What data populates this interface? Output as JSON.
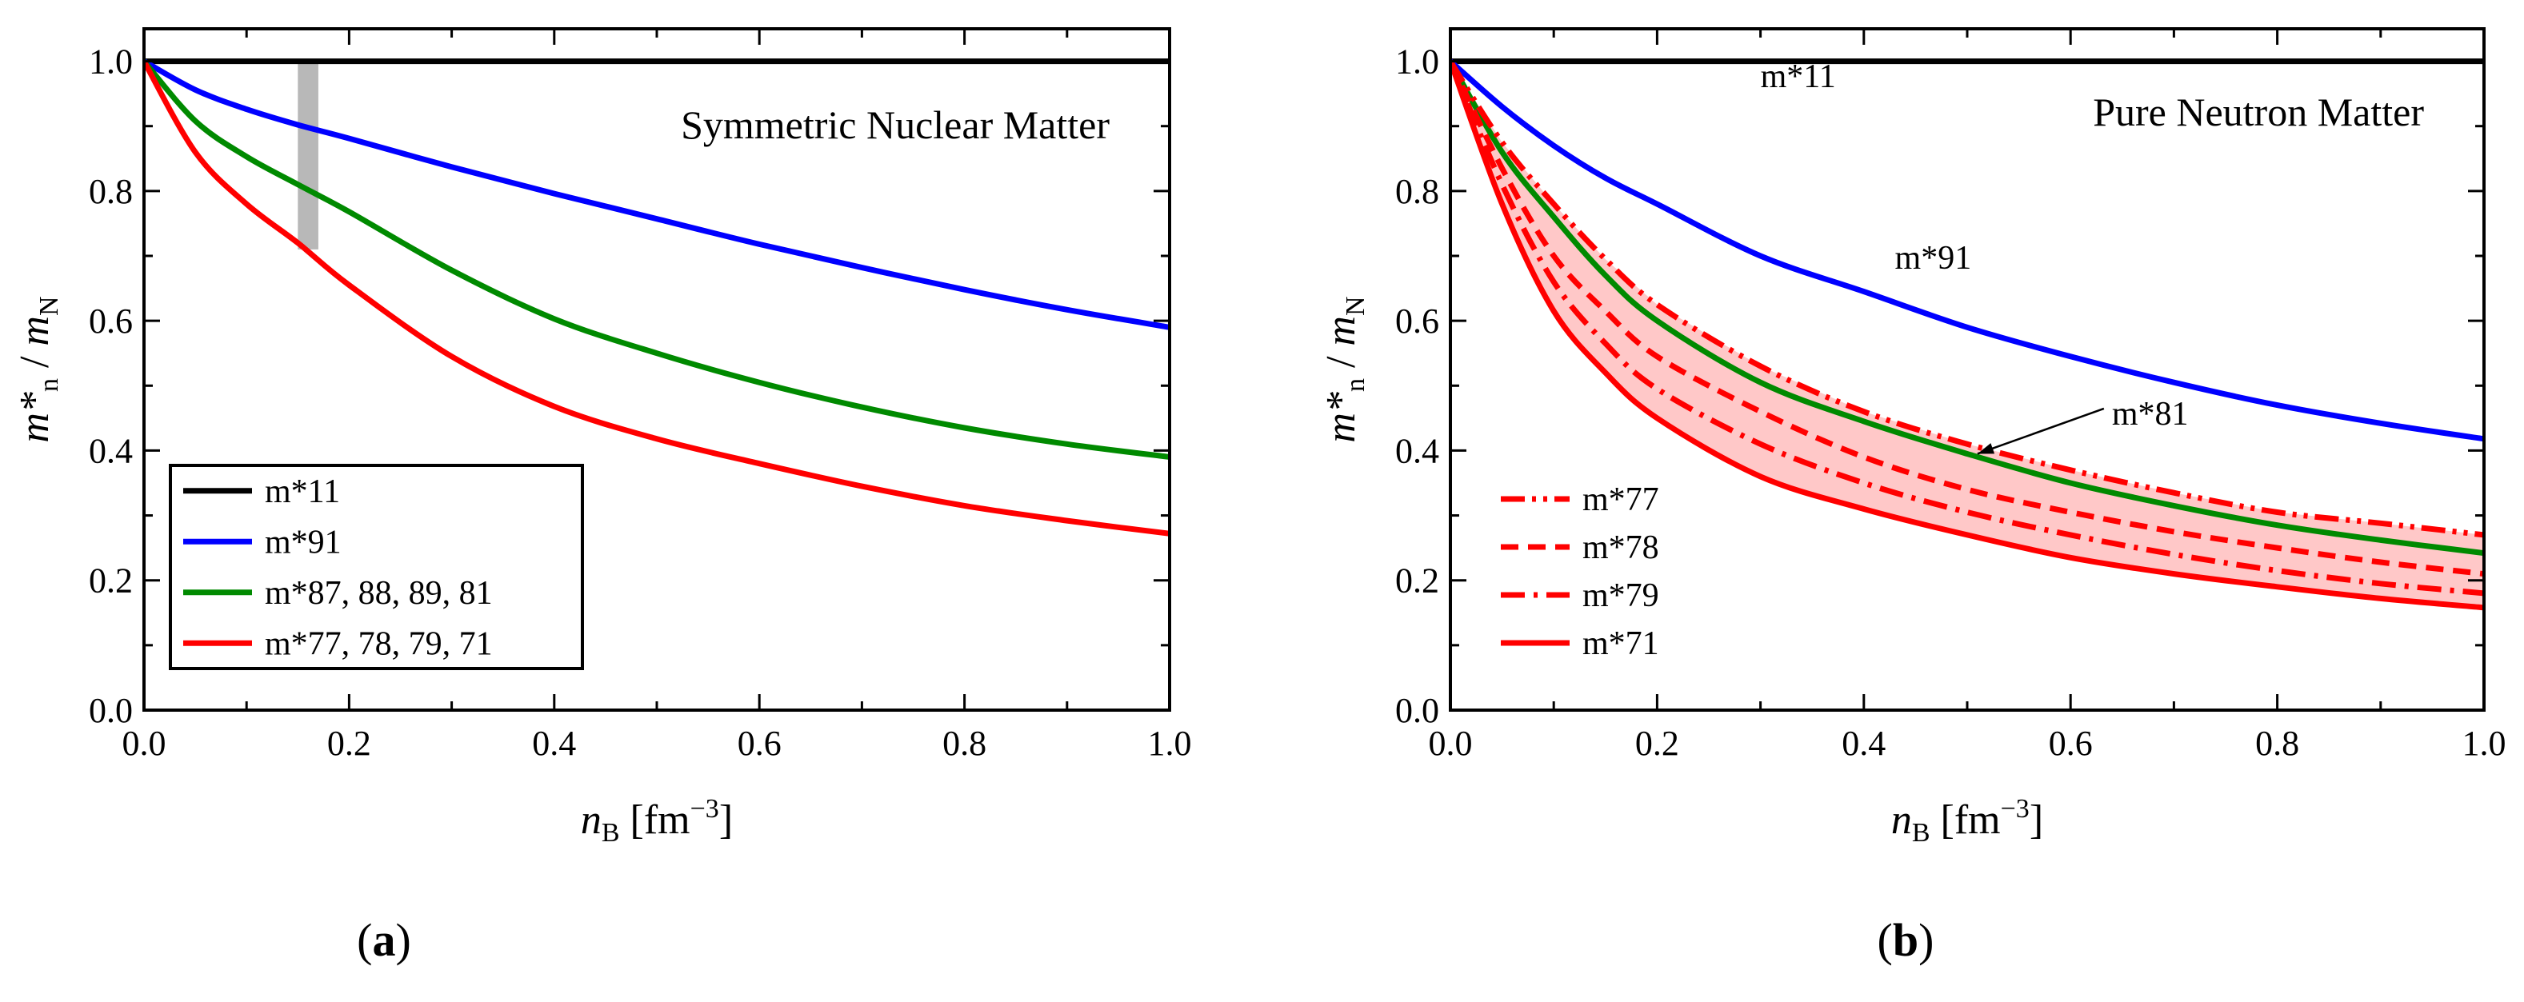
{
  "chart_data": [
    {
      "panel": "a",
      "type": "line",
      "title": "Symmetric Nuclear Matter",
      "panel_label": {
        "pre": "(",
        "letter": "a",
        "post": ")"
      },
      "xlabel": {
        "main": "n",
        "sub": "B",
        "unit_pre": " [fm",
        "unit_sup": "−3",
        "unit_post": "]"
      },
      "ylabel": {
        "main": "m*",
        "sub": "n",
        "sep": " / ",
        "main2": "m",
        "sub2": "N"
      },
      "xlim": [
        0,
        1.0
      ],
      "ylim": [
        0,
        1.05
      ],
      "xticks": [
        "0.0",
        "0.2",
        "0.4",
        "0.6",
        "0.8",
        "1.0"
      ],
      "yticks": [
        "0.0",
        "0.2",
        "0.4",
        "0.6",
        "0.8",
        "1.0"
      ],
      "shaded_band": {
        "x_range": [
          0.15,
          0.17
        ],
        "y_range": [
          0.71,
          1.0
        ],
        "color": "#b8b8b8"
      },
      "series": [
        {
          "name": "m*11",
          "color": "#000000",
          "style": "solid",
          "x": [
            0,
            0.1,
            0.2,
            0.3,
            0.4,
            0.5,
            0.6,
            0.7,
            0.8,
            0.9,
            1.0
          ],
          "y": [
            1.0,
            1.0,
            1.0,
            1.0,
            1.0,
            1.0,
            1.0,
            1.0,
            1.0,
            1.0,
            1.0
          ]
        },
        {
          "name": "m*91",
          "color": "#0000ff",
          "style": "solid",
          "x": [
            0,
            0.05,
            0.1,
            0.15,
            0.2,
            0.3,
            0.4,
            0.5,
            0.6,
            0.7,
            0.8,
            0.9,
            1.0
          ],
          "y": [
            1.0,
            0.956,
            0.926,
            0.902,
            0.881,
            0.837,
            0.796,
            0.757,
            0.718,
            0.682,
            0.648,
            0.617,
            0.59
          ]
        },
        {
          "name": "m*87, 88, 89, 81",
          "color": "#008a00",
          "style": "solid",
          "x": [
            0,
            0.05,
            0.1,
            0.15,
            0.2,
            0.3,
            0.4,
            0.5,
            0.6,
            0.7,
            0.8,
            0.9,
            1.0
          ],
          "y": [
            1.0,
            0.908,
            0.853,
            0.81,
            0.768,
            0.678,
            0.603,
            0.55,
            0.505,
            0.467,
            0.435,
            0.41,
            0.39
          ]
        },
        {
          "name": "m*77, 78, 79, 71",
          "color": "#ff0000",
          "style": "solid",
          "x": [
            0,
            0.05,
            0.1,
            0.15,
            0.2,
            0.3,
            0.4,
            0.5,
            0.6,
            0.7,
            0.8,
            0.9,
            1.0
          ],
          "y": [
            1.0,
            0.86,
            0.78,
            0.72,
            0.655,
            0.545,
            0.468,
            0.418,
            0.38,
            0.345,
            0.315,
            0.292,
            0.272
          ]
        }
      ],
      "legend": {
        "placement": "lower-left",
        "entries": [
          {
            "label": "m*11",
            "color": "#000000",
            "style": "solid"
          },
          {
            "label": "m*91",
            "color": "#0000ff",
            "style": "solid"
          },
          {
            "label": "m*87, 88, 89, 81",
            "color": "#008a00",
            "style": "solid"
          },
          {
            "label": "m*77, 78, 79, 71",
            "color": "#ff0000",
            "style": "solid"
          }
        ]
      }
    },
    {
      "panel": "b",
      "type": "line",
      "title": "Pure Neutron Matter",
      "panel_label": {
        "pre": "(",
        "letter": "b",
        "post": ")"
      },
      "xlabel": {
        "main": "n",
        "sub": "B",
        "unit_pre": " [fm",
        "unit_sup": "−3",
        "unit_post": "]"
      },
      "ylabel": {
        "main": "m*",
        "sub": "n",
        "sep": " / ",
        "main2": "m",
        "sub2": "N"
      },
      "xlim": [
        0,
        1.0
      ],
      "ylim": [
        0,
        1.05
      ],
      "xticks": [
        "0.0",
        "0.2",
        "0.4",
        "0.6",
        "0.8",
        "1.0"
      ],
      "yticks": [
        "0.0",
        "0.2",
        "0.4",
        "0.6",
        "0.8",
        "1.0"
      ],
      "shaded_region": {
        "between": [
          "m*77",
          "m*71"
        ],
        "color": "#ffc8c8"
      },
      "series": [
        {
          "name": "m*11",
          "color": "#000000",
          "style": "solid",
          "x": [
            0,
            0.1,
            0.2,
            0.3,
            0.4,
            0.5,
            0.6,
            0.7,
            0.8,
            0.9,
            1.0
          ],
          "y": [
            1.0,
            1.0,
            1.0,
            1.0,
            1.0,
            1.0,
            1.0,
            1.0,
            1.0,
            1.0,
            1.0
          ]
        },
        {
          "name": "m*91",
          "color": "#0000ff",
          "style": "solid",
          "x": [
            0,
            0.05,
            0.1,
            0.15,
            0.2,
            0.3,
            0.4,
            0.5,
            0.6,
            0.7,
            0.8,
            0.9,
            1.0
          ],
          "y": [
            1.0,
            0.93,
            0.87,
            0.82,
            0.78,
            0.7,
            0.645,
            0.59,
            0.545,
            0.505,
            0.47,
            0.442,
            0.418
          ]
        },
        {
          "name": "m*81",
          "color": "#008a00",
          "style": "solid",
          "x": [
            0,
            0.05,
            0.1,
            0.15,
            0.2,
            0.3,
            0.4,
            0.5,
            0.6,
            0.7,
            0.8,
            0.9,
            1.0
          ],
          "y": [
            1.0,
            0.86,
            0.76,
            0.67,
            0.6,
            0.505,
            0.445,
            0.395,
            0.35,
            0.315,
            0.285,
            0.262,
            0.242
          ]
        },
        {
          "name": "m*77",
          "color": "#ff0000",
          "style": "dashdotdot",
          "x": [
            0,
            0.05,
            0.1,
            0.15,
            0.2,
            0.3,
            0.4,
            0.5,
            0.6,
            0.7,
            0.8,
            0.9,
            1.0
          ],
          "y": [
            1.0,
            0.875,
            0.78,
            0.695,
            0.625,
            0.53,
            0.46,
            0.41,
            0.37,
            0.335,
            0.305,
            0.288,
            0.27
          ]
        },
        {
          "name": "m*78",
          "color": "#ff0000",
          "style": "dashed",
          "x": [
            0,
            0.05,
            0.1,
            0.15,
            0.2,
            0.3,
            0.4,
            0.5,
            0.6,
            0.7,
            0.8,
            0.9,
            1.0
          ],
          "y": [
            1.0,
            0.835,
            0.7,
            0.615,
            0.545,
            0.46,
            0.39,
            0.34,
            0.305,
            0.275,
            0.25,
            0.228,
            0.21
          ]
        },
        {
          "name": "m*79",
          "color": "#ff0000",
          "style": "dashdot",
          "x": [
            0,
            0.05,
            0.1,
            0.15,
            0.2,
            0.3,
            0.4,
            0.5,
            0.6,
            0.7,
            0.8,
            0.9,
            1.0
          ],
          "y": [
            1.0,
            0.81,
            0.66,
            0.565,
            0.495,
            0.41,
            0.35,
            0.305,
            0.27,
            0.24,
            0.215,
            0.195,
            0.18
          ]
        },
        {
          "name": "m*71",
          "color": "#ff0000",
          "style": "solid",
          "x": [
            0,
            0.05,
            0.1,
            0.15,
            0.2,
            0.3,
            0.4,
            0.5,
            0.6,
            0.7,
            0.8,
            0.9,
            1.0
          ],
          "y": [
            1.0,
            0.78,
            0.615,
            0.52,
            0.45,
            0.36,
            0.31,
            0.27,
            0.235,
            0.21,
            0.19,
            0.172,
            0.158
          ]
        }
      ],
      "annotations": [
        {
          "text": "m*11",
          "x": 0.3,
          "y": 0.96
        },
        {
          "text": "m*91",
          "x": 0.43,
          "y": 0.68
        },
        {
          "text": "m*81",
          "x": 0.64,
          "y": 0.44,
          "arrow_to": [
            0.51,
            0.395
          ]
        }
      ],
      "legend": {
        "placement": "lower-left",
        "entries": [
          {
            "label": "m*77",
            "color": "#ff0000",
            "style": "dashdotdot"
          },
          {
            "label": "m*78",
            "color": "#ff0000",
            "style": "dashed"
          },
          {
            "label": "m*79",
            "color": "#ff0000",
            "style": "dashdot"
          },
          {
            "label": "m*71",
            "color": "#ff0000",
            "style": "solid"
          }
        ]
      }
    }
  ]
}
